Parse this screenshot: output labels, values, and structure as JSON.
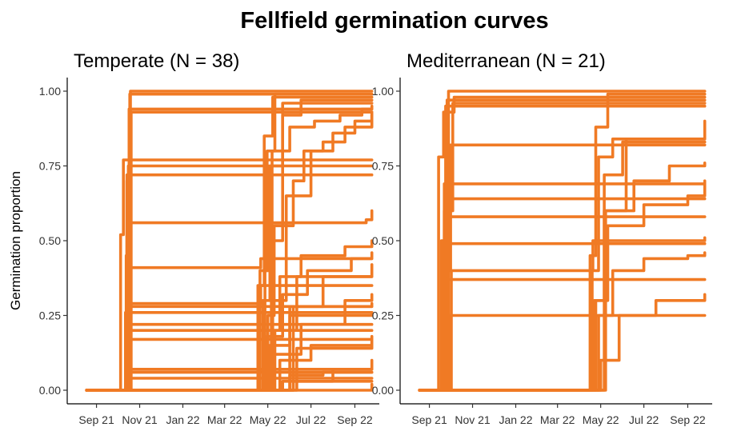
{
  "figure": {
    "title": "Fellfield germination curves",
    "ylabel": "Germination proportion"
  },
  "colors": {
    "curve": "#F07A24",
    "axis": "#000000",
    "text": "#333333"
  },
  "chart_data": [
    {
      "type": "line",
      "panel_title": "Temperate (N = 38)",
      "ylim": [
        0,
        1
      ],
      "yticks": [
        0,
        0.25,
        0.5,
        0.75,
        1
      ],
      "ytick_labels": [
        "0.00",
        "0.25",
        "0.50",
        "0.75",
        "1.00"
      ],
      "xlim": [
        "2021-08-25",
        "2022-10-15"
      ],
      "xticks": [
        "2021-09-15",
        "2021-11-15",
        "2022-01-15",
        "2022-03-15",
        "2022-05-15",
        "2022-07-15",
        "2022-09-15"
      ],
      "xtick_labels": [
        "Sep 21",
        "Nov 21",
        "Jan 22",
        "Mar 22",
        "May 22",
        "Jul 22",
        "Sep 22"
      ],
      "grid": false,
      "legend": "none",
      "series": [
        {
          "x": [
            "2021-09-01",
            "2021-10-24",
            "2021-10-27",
            "2021-10-31",
            "2022-10-09"
          ],
          "y": [
            0,
            0,
            0.45,
            0.94,
            0.94
          ]
        },
        {
          "x": [
            "2021-09-01",
            "2021-10-26",
            "2021-10-29",
            "2021-11-02",
            "2022-10-09"
          ],
          "y": [
            0,
            0,
            0.6,
            1.0,
            1.0
          ]
        },
        {
          "x": [
            "2021-09-01",
            "2021-10-25",
            "2021-10-28",
            "2021-11-01",
            "2022-10-09"
          ],
          "y": [
            0,
            0,
            0.7,
            0.99,
            0.99
          ]
        },
        {
          "x": [
            "2021-09-01",
            "2021-10-27",
            "2021-11-03",
            "2022-10-09"
          ],
          "y": [
            0,
            0,
            0.93,
            0.93
          ]
        },
        {
          "x": [
            "2021-09-01",
            "2021-10-18",
            "2021-10-19",
            "2021-10-23",
            "2022-10-09"
          ],
          "y": [
            0,
            0,
            0.52,
            0.77,
            0.77
          ]
        },
        {
          "x": [
            "2021-09-01",
            "2021-10-23",
            "2021-10-30",
            "2022-10-09"
          ],
          "y": [
            0,
            0,
            0.75,
            0.75
          ]
        },
        {
          "x": [
            "2021-09-01",
            "2021-10-22",
            "2021-10-28",
            "2022-10-09"
          ],
          "y": [
            0,
            0,
            0.72,
            0.72
          ]
        },
        {
          "x": [
            "2021-09-01",
            "2021-10-24",
            "2021-10-29",
            "2022-04-30",
            "2022-05-05",
            "2022-10-09"
          ],
          "y": [
            0,
            0,
            0.29,
            0.29,
            0.35,
            0.35
          ]
        },
        {
          "x": [
            "2021-09-01",
            "2021-10-24",
            "2021-10-28",
            "2022-10-09"
          ],
          "y": [
            0,
            0,
            0.28,
            0.28
          ]
        },
        {
          "x": [
            "2021-09-01",
            "2021-10-22",
            "2021-10-26",
            "2022-10-09"
          ],
          "y": [
            0,
            0,
            0.26,
            0.26
          ]
        },
        {
          "x": [
            "2021-09-01",
            "2021-10-25",
            "2021-10-30",
            "2022-10-09"
          ],
          "y": [
            0,
            0,
            0.22,
            0.22
          ]
        },
        {
          "x": [
            "2021-09-01",
            "2021-10-24",
            "2021-10-29",
            "2022-10-09"
          ],
          "y": [
            0,
            0,
            0.2,
            0.2
          ]
        },
        {
          "x": [
            "2021-09-01",
            "2021-10-24",
            "2021-10-27",
            "2022-10-09"
          ],
          "y": [
            0,
            0,
            0.17,
            0.17
          ]
        },
        {
          "x": [
            "2021-09-01",
            "2021-10-23",
            "2021-10-31",
            "2022-10-09"
          ],
          "y": [
            0,
            0,
            0.06,
            0.06
          ]
        },
        {
          "x": [
            "2021-09-01",
            "2021-10-23",
            "2021-10-30",
            "2022-10-09"
          ],
          "y": [
            0,
            0,
            0.04,
            0.04
          ]
        },
        {
          "x": [
            "2021-09-01",
            "2021-10-24",
            "2021-10-31",
            "2022-10-09"
          ],
          "y": [
            0,
            0,
            0.07,
            0.07
          ]
        },
        {
          "x": [
            "2021-09-01",
            "2021-10-24",
            "2021-11-02",
            "2022-05-01",
            "2022-05-05",
            "2022-10-09"
          ],
          "y": [
            0,
            0,
            0.41,
            0.41,
            0.44,
            0.44
          ]
        },
        {
          "x": [
            "2021-09-01",
            "2021-10-24",
            "2021-11-02",
            "2022-04-28",
            "2022-05-05",
            "2022-10-01",
            "2022-10-09"
          ],
          "y": [
            0,
            0,
            0.56,
            0.56,
            0.56,
            0.57,
            0.6
          ]
        },
        {
          "x": [
            "2021-09-01",
            "2022-04-26",
            "2022-05-01",
            "2022-05-10",
            "2022-05-22",
            "2022-10-09"
          ],
          "y": [
            0,
            0,
            0.35,
            0.85,
            0.98,
            0.98
          ]
        },
        {
          "x": [
            "2021-09-01",
            "2022-04-29",
            "2022-05-04",
            "2022-05-14",
            "2022-05-25",
            "2022-10-09"
          ],
          "y": [
            0,
            0,
            0.4,
            0.8,
            0.99,
            0.99
          ]
        },
        {
          "x": [
            "2021-09-01",
            "2022-05-02",
            "2022-05-08",
            "2022-05-18",
            "2022-06-05",
            "2022-10-09"
          ],
          "y": [
            0,
            0,
            0.3,
            0.75,
            0.96,
            0.96
          ]
        },
        {
          "x": [
            "2021-09-01",
            "2022-05-05",
            "2022-05-11",
            "2022-05-21",
            "2022-06-15",
            "2022-07-20",
            "2022-08-25",
            "2022-09-25",
            "2022-10-09"
          ],
          "y": [
            0,
            0,
            0.4,
            0.8,
            0.88,
            0.9,
            0.92,
            0.94,
            0.95
          ]
        },
        {
          "x": [
            "2021-09-01",
            "2022-05-08",
            "2022-05-15",
            "2022-05-24",
            "2022-06-20",
            "2022-07-05",
            "2022-08-01",
            "2022-09-01",
            "2022-10-09"
          ],
          "y": [
            0,
            0,
            0.25,
            0.55,
            0.7,
            0.8,
            0.83,
            0.88,
            0.92
          ]
        },
        {
          "x": [
            "2021-09-01",
            "2022-05-10",
            "2022-05-20",
            "2022-06-10",
            "2022-07-15",
            "2022-08-15",
            "2022-09-15",
            "2022-10-09"
          ],
          "y": [
            0,
            0,
            0.3,
            0.65,
            0.8,
            0.86,
            0.9,
            0.93
          ]
        },
        {
          "x": [
            "2021-09-01",
            "2022-05-13",
            "2022-05-22",
            "2022-06-05",
            "2022-07-01",
            "2022-10-09"
          ],
          "y": [
            0,
            0,
            0.5,
            0.92,
            0.97,
            0.97
          ]
        },
        {
          "x": [
            "2021-09-01",
            "2022-04-30",
            "2022-05-10",
            "2022-06-01",
            "2022-07-01",
            "2022-09-01",
            "2022-10-09"
          ],
          "y": [
            0,
            0,
            0.2,
            0.38,
            0.45,
            0.48,
            0.5
          ]
        },
        {
          "x": [
            "2021-09-01",
            "2022-05-05",
            "2022-05-14",
            "2022-06-05",
            "2022-07-10",
            "2022-09-10",
            "2022-10-09"
          ],
          "y": [
            0,
            0,
            0.18,
            0.32,
            0.4,
            0.44,
            0.46
          ]
        },
        {
          "x": [
            "2021-09-01",
            "2022-05-08",
            "2022-05-18",
            "2022-06-15",
            "2022-08-01",
            "2022-10-09"
          ],
          "y": [
            0,
            0,
            0.15,
            0.28,
            0.38,
            0.42
          ]
        },
        {
          "x": [
            "2021-09-01",
            "2022-05-12",
            "2022-05-25",
            "2022-06-25",
            "2022-10-09"
          ],
          "y": [
            0,
            0,
            0.2,
            0.38,
            0.38
          ]
        },
        {
          "x": [
            "2021-09-01",
            "2022-05-10",
            "2022-05-22",
            "2022-07-01",
            "2022-09-01",
            "2022-10-09"
          ],
          "y": [
            0,
            0,
            0.12,
            0.22,
            0.3,
            0.32
          ]
        },
        {
          "x": [
            "2021-09-01",
            "2022-05-15",
            "2022-06-01",
            "2022-07-15",
            "2022-10-09"
          ],
          "y": [
            0,
            0,
            0.1,
            0.15,
            0.16
          ]
        },
        {
          "x": [
            "2021-09-01",
            "2022-05-20",
            "2022-06-20",
            "2022-08-15",
            "2022-10-09"
          ],
          "y": [
            0,
            0,
            0.03,
            0.07,
            0.1
          ]
        },
        {
          "x": [
            "2021-09-01",
            "2022-05-18",
            "2022-06-15",
            "2022-08-01",
            "2022-10-09"
          ],
          "y": [
            0,
            0,
            0.05,
            0.06,
            0.06
          ]
        },
        {
          "x": [
            "2021-09-01",
            "2022-05-15",
            "2022-06-05",
            "2022-10-09"
          ],
          "y": [
            0,
            0,
            0.03,
            0.03
          ]
        },
        {
          "x": [
            "2021-09-01",
            "2022-05-18",
            "2022-06-15",
            "2022-10-09"
          ],
          "y": [
            0,
            0,
            0.25,
            0.26
          ]
        },
        {
          "x": [
            "2021-09-01",
            "2022-05-20",
            "2022-06-20",
            "2022-10-09"
          ],
          "y": [
            0,
            0,
            0.28,
            0.29
          ]
        },
        {
          "x": [
            "2021-09-01",
            "2022-05-22",
            "2022-06-25",
            "2022-10-09"
          ],
          "y": [
            0,
            0,
            0.14,
            0.18
          ]
        },
        {
          "x": [
            "2021-09-01",
            "2022-10-06",
            "2022-10-09"
          ],
          "y": [
            0,
            0,
            0.02
          ]
        }
      ]
    },
    {
      "type": "line",
      "panel_title": "Mediterranean (N = 21)",
      "ylim": [
        0,
        1
      ],
      "yticks": [
        0,
        0.25,
        0.5,
        0.75,
        1
      ],
      "ytick_labels": [
        "0.00",
        "0.25",
        "0.50",
        "0.75",
        "1.00"
      ],
      "xlim": [
        "2021-08-25",
        "2022-10-15"
      ],
      "xticks": [
        "2021-09-15",
        "2021-11-15",
        "2022-01-15",
        "2022-03-15",
        "2022-05-15",
        "2022-07-15",
        "2022-09-15"
      ],
      "xtick_labels": [
        "Sep 21",
        "Nov 21",
        "Jan 22",
        "Mar 22",
        "May 22",
        "Jul 22",
        "Sep 22"
      ],
      "grid": false,
      "legend": "none",
      "series": [
        {
          "x": [
            "2021-09-01",
            "2021-09-25",
            "2021-09-28",
            "2021-10-05",
            "2021-10-20",
            "2022-10-09"
          ],
          "y": [
            0,
            0,
            0.78,
            0.93,
            0.98,
            0.98
          ]
        },
        {
          "x": [
            "2021-09-01",
            "2021-09-28",
            "2021-10-02",
            "2021-10-12",
            "2022-10-09"
          ],
          "y": [
            0,
            0,
            0.5,
            1.0,
            1.0
          ]
        },
        {
          "x": [
            "2021-09-01",
            "2021-10-01",
            "2021-10-06",
            "2021-10-18",
            "2022-10-09"
          ],
          "y": [
            0,
            0,
            0.6,
            0.96,
            0.96
          ]
        },
        {
          "x": [
            "2021-09-01",
            "2021-10-04",
            "2021-10-10",
            "2022-10-09"
          ],
          "y": [
            0,
            0,
            0.97,
            0.97
          ]
        },
        {
          "x": [
            "2021-09-01",
            "2021-09-30",
            "2021-10-08",
            "2022-10-09"
          ],
          "y": [
            0,
            0,
            0.95,
            0.95
          ]
        },
        {
          "x": [
            "2021-09-01",
            "2021-09-26",
            "2021-10-03",
            "2021-10-15",
            "2022-10-09"
          ],
          "y": [
            0,
            0,
            0.4,
            0.82,
            0.82
          ]
        },
        {
          "x": [
            "2021-09-01",
            "2021-09-29",
            "2021-10-06",
            "2022-10-09"
          ],
          "y": [
            0,
            0,
            0.69,
            0.69
          ]
        },
        {
          "x": [
            "2021-09-01",
            "2021-10-02",
            "2021-10-09",
            "2022-10-09"
          ],
          "y": [
            0,
            0,
            0.64,
            0.64
          ]
        },
        {
          "x": [
            "2021-09-01",
            "2021-10-05",
            "2021-10-12",
            "2022-10-09"
          ],
          "y": [
            0,
            0,
            0.58,
            0.58
          ]
        },
        {
          "x": [
            "2021-09-01",
            "2021-09-27",
            "2021-10-04",
            "2022-10-09"
          ],
          "y": [
            0,
            0,
            0.49,
            0.49
          ]
        },
        {
          "x": [
            "2021-09-01",
            "2021-10-03",
            "2021-10-11",
            "2022-10-09"
          ],
          "y": [
            0,
            0,
            0.37,
            0.37
          ]
        },
        {
          "x": [
            "2021-09-01",
            "2021-10-06",
            "2021-10-14",
            "2022-10-09"
          ],
          "y": [
            0,
            0,
            0.25,
            0.25
          ]
        },
        {
          "x": [
            "2021-09-01",
            "2021-10-08",
            "2021-10-16",
            "2022-04-28",
            "2022-05-04",
            "2022-10-09"
          ],
          "y": [
            0,
            0,
            0.4,
            0.4,
            0.5,
            0.51
          ]
        },
        {
          "x": [
            "2021-09-01",
            "2022-04-25",
            "2022-04-30",
            "2022-05-08",
            "2022-05-25",
            "2022-10-09"
          ],
          "y": [
            0,
            0,
            0.45,
            0.88,
            0.99,
            0.99
          ]
        },
        {
          "x": [
            "2021-09-01",
            "2022-04-28",
            "2022-05-03",
            "2022-05-12",
            "2022-06-01",
            "2022-10-09"
          ],
          "y": [
            0,
            0,
            0.4,
            0.78,
            0.84,
            0.84
          ]
        },
        {
          "x": [
            "2021-09-01",
            "2022-04-26",
            "2022-05-06",
            "2022-05-20",
            "2022-07-01",
            "2022-08-20",
            "2022-10-09"
          ],
          "y": [
            0,
            0,
            0.3,
            0.6,
            0.7,
            0.75,
            0.76
          ]
        },
        {
          "x": [
            "2021-09-01",
            "2022-04-30",
            "2022-05-08",
            "2022-05-25",
            "2022-07-15",
            "2022-09-15",
            "2022-10-09"
          ],
          "y": [
            0,
            0,
            0.3,
            0.55,
            0.62,
            0.65,
            0.7
          ]
        },
        {
          "x": [
            "2021-09-01",
            "2022-05-01",
            "2022-05-12",
            "2022-06-01",
            "2022-07-15",
            "2022-09-15",
            "2022-10-09"
          ],
          "y": [
            0,
            0,
            0.25,
            0.4,
            0.44,
            0.45,
            0.46
          ]
        },
        {
          "x": [
            "2021-09-01",
            "2022-05-06",
            "2022-05-15",
            "2022-06-10",
            "2022-08-01",
            "2022-10-09"
          ],
          "y": [
            0,
            0,
            0.1,
            0.25,
            0.3,
            0.32
          ]
        },
        {
          "x": [
            "2021-09-01",
            "2022-05-10",
            "2022-05-20",
            "2022-06-15",
            "2022-10-09"
          ],
          "y": [
            0,
            0,
            0.72,
            0.83,
            0.83
          ]
        },
        {
          "x": [
            "2021-09-01",
            "2022-05-12",
            "2022-05-22",
            "2022-06-20",
            "2022-10-09"
          ],
          "y": [
            0,
            0,
            0.6,
            0.84,
            0.9
          ]
        }
      ]
    }
  ]
}
